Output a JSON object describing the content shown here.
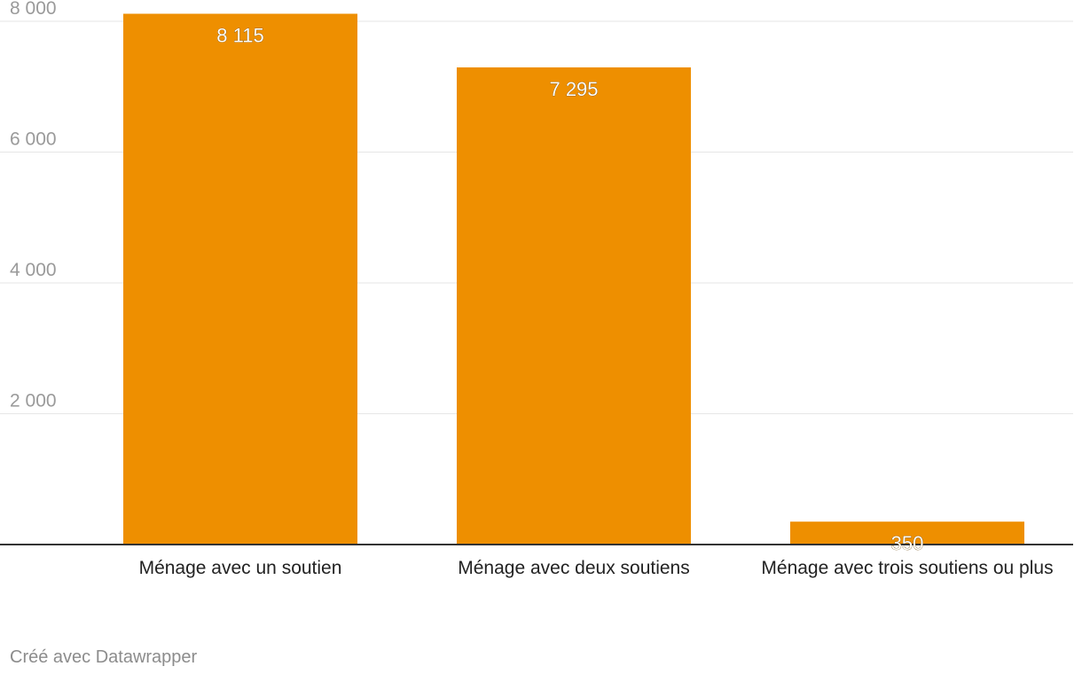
{
  "chart_data": {
    "type": "bar",
    "categories": [
      "Ménage avec un soutien",
      "Ménage avec deux soutiens",
      "Ménage avec trois soutiens ou plus"
    ],
    "values": [
      8115,
      7295,
      350
    ],
    "value_labels": [
      "8 115",
      "7 295",
      "350"
    ],
    "yticks": [
      2000,
      4000,
      6000,
      8000
    ],
    "ytick_labels": [
      "2 000",
      "4 000",
      "6 000",
      "8 000"
    ],
    "ylim": [
      0,
      8000
    ],
    "grid": true,
    "bar_color": "#ee8f00",
    "grid_color": "#e6e6e6",
    "axis_color": "#333333",
    "tick_label_color": "#9a9a9a"
  },
  "footer": {
    "credit": "Créé avec Datawrapper"
  }
}
